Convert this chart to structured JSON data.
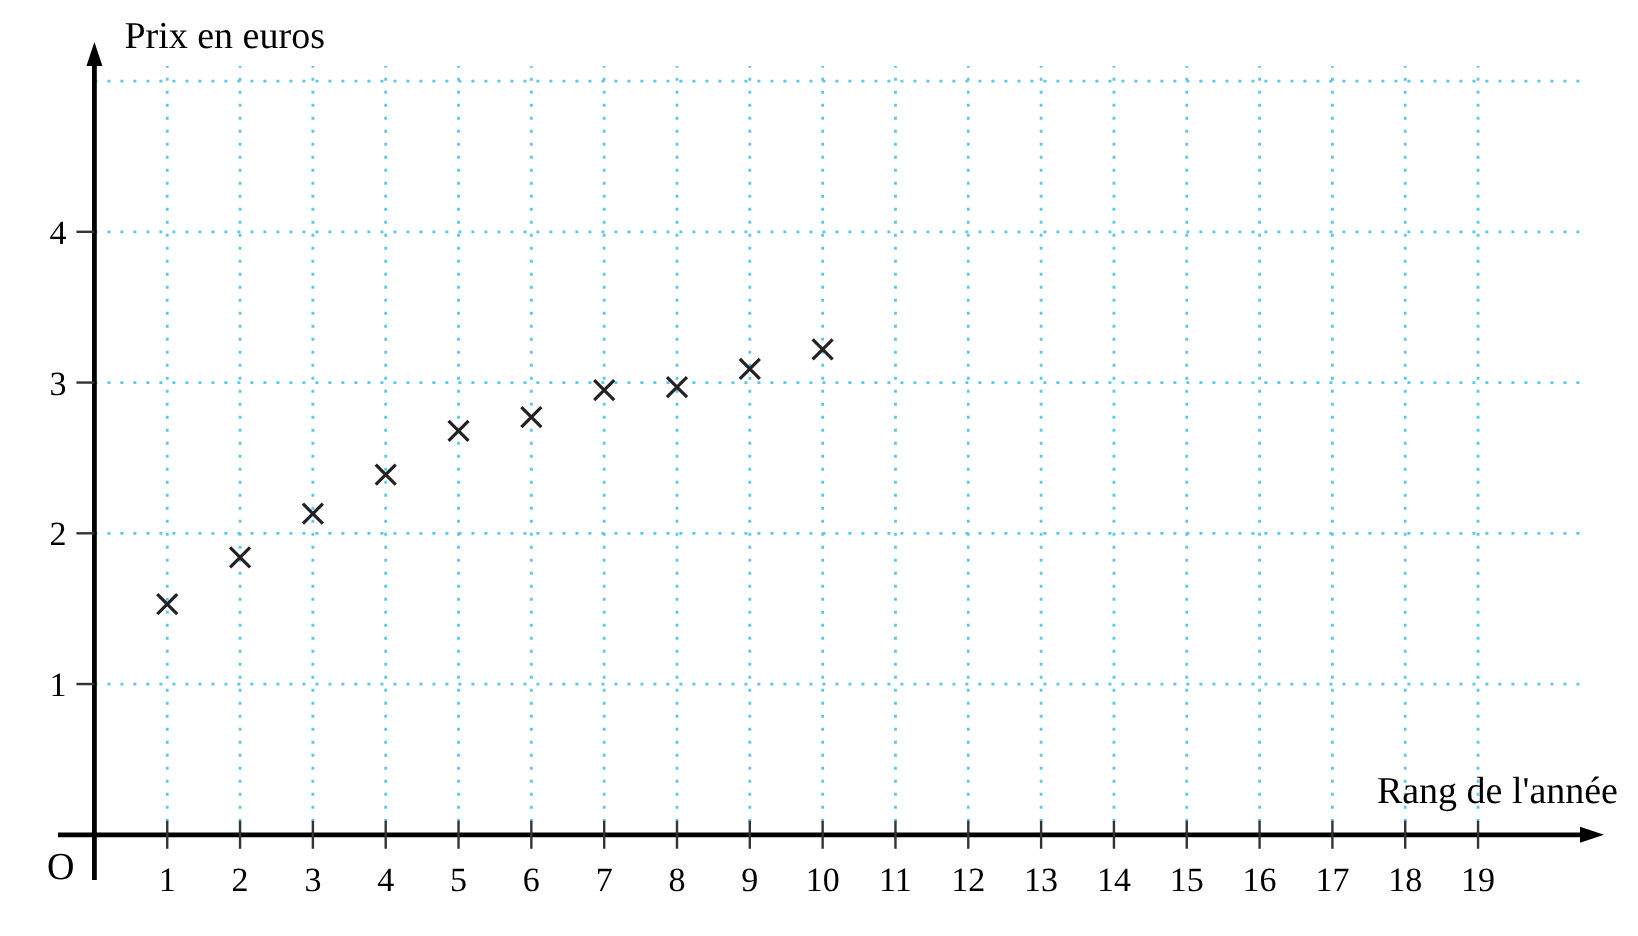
{
  "chart_data": {
    "type": "scatter",
    "xlabel": "Rang de l'année",
    "ylabel": "Prix en euros",
    "x": [
      1,
      2,
      3,
      4,
      5,
      6,
      7,
      8,
      9,
      10
    ],
    "values": [
      1.53,
      1.84,
      2.13,
      2.39,
      2.68,
      2.77,
      2.95,
      2.97,
      3.09,
      3.22
    ],
    "color": "#222222",
    "marker": "cross",
    "xlim": [
      -0.5,
      20.4
    ],
    "ylim": [
      -0.3,
      5.1
    ],
    "xticks": [
      1,
      2,
      3,
      4,
      5,
      6,
      7,
      8,
      9,
      10,
      11,
      12,
      13,
      14,
      15,
      16,
      17,
      18,
      19
    ],
    "yticks": [
      1,
      2,
      3,
      4,
      {
        "value": 5,
        "label": null
      }
    ],
    "grid": true,
    "annotations": [
      "O"
    ]
  }
}
